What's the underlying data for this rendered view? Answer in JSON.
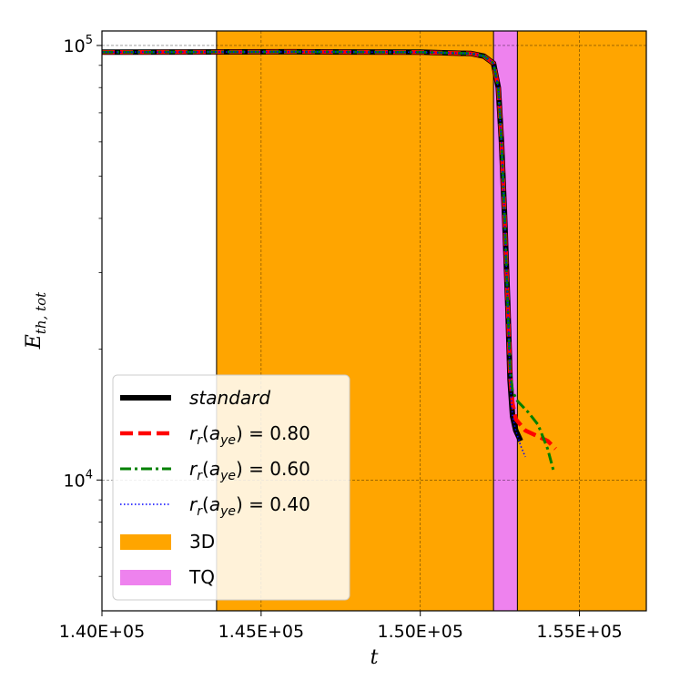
{
  "chart_data": {
    "type": "line",
    "xlabel": "t",
    "ylabel_main": "E",
    "ylabel_sub": "th, tot",
    "xlim": [
      140000,
      157100
    ],
    "ylim": [
      5000,
      108000
    ],
    "yscale": "log",
    "grid": true,
    "x_ticks": [
      {
        "value": 140000,
        "label": "1.40E+05"
      },
      {
        "value": 145000,
        "label": "1.45E+05"
      },
      {
        "value": 150000,
        "label": "1.50E+05"
      },
      {
        "value": 155000,
        "label": "1.55E+05"
      }
    ],
    "y_ticks": [
      {
        "value": 10000,
        "base": "10",
        "exp": "4"
      },
      {
        "value": 100000,
        "base": "10",
        "exp": "5"
      }
    ],
    "regions": [
      {
        "name": "3D",
        "x0": 143600,
        "x1": 157100,
        "color": "#ffa500"
      },
      {
        "name": "TQ",
        "x0": 152300,
        "x1": 153050,
        "color": "#ee82ee"
      }
    ],
    "series": [
      {
        "name": "standard",
        "color": "#000000",
        "style": "solid",
        "points": [
          [
            140000,
            96500
          ],
          [
            143000,
            96600
          ],
          [
            146000,
            96700
          ],
          [
            150000,
            96500
          ],
          [
            151600,
            95800
          ],
          [
            152000,
            94500
          ],
          [
            152300,
            91000
          ],
          [
            152450,
            80000
          ],
          [
            152550,
            60000
          ],
          [
            152650,
            40000
          ],
          [
            152750,
            25000
          ],
          [
            152820,
            17000
          ],
          [
            152900,
            14000
          ],
          [
            153000,
            13000
          ],
          [
            153150,
            12300
          ]
        ]
      },
      {
        "name": "r_r(a_ye) = 0.80",
        "color": "#ff0000",
        "style": "dashed",
        "points": [
          [
            140000,
            96500
          ],
          [
            143000,
            96600
          ],
          [
            146000,
            96700
          ],
          [
            150000,
            96500
          ],
          [
            151600,
            95800
          ],
          [
            152000,
            94500
          ],
          [
            152300,
            91000
          ],
          [
            152450,
            80000
          ],
          [
            152550,
            60000
          ],
          [
            152650,
            40000
          ],
          [
            152750,
            25000
          ],
          [
            152820,
            17500
          ],
          [
            152900,
            15000
          ],
          [
            153000,
            13800
          ],
          [
            153300,
            13000
          ],
          [
            153700,
            12600
          ],
          [
            154000,
            12300
          ],
          [
            154250,
            11800
          ]
        ]
      },
      {
        "name": "r_r(a_ye) = 0.60",
        "color": "#008000",
        "style": "dashdot",
        "points": [
          [
            140000,
            96500
          ],
          [
            143000,
            96600
          ],
          [
            146000,
            96700
          ],
          [
            150000,
            96500
          ],
          [
            151600,
            95800
          ],
          [
            152000,
            94500
          ],
          [
            152300,
            91000
          ],
          [
            152450,
            80000
          ],
          [
            152550,
            60000
          ],
          [
            152650,
            40000
          ],
          [
            152750,
            25000
          ],
          [
            152820,
            18000
          ],
          [
            152900,
            16000
          ],
          [
            153050,
            15200
          ],
          [
            153400,
            14300
          ],
          [
            153700,
            13400
          ],
          [
            154000,
            11800
          ],
          [
            154200,
            10400
          ]
        ]
      },
      {
        "name": "r_r(a_ye) = 0.40",
        "color": "#0000ff",
        "style": "dotted",
        "points": [
          [
            140000,
            96500
          ],
          [
            143000,
            96600
          ],
          [
            146000,
            96700
          ],
          [
            150000,
            96500
          ],
          [
            151600,
            95800
          ],
          [
            152000,
            94500
          ],
          [
            152300,
            91000
          ],
          [
            152450,
            80000
          ],
          [
            152550,
            60000
          ],
          [
            152650,
            40000
          ],
          [
            152750,
            25000
          ],
          [
            152820,
            17000
          ],
          [
            152900,
            14000
          ],
          [
            153000,
            13000
          ],
          [
            153150,
            12000
          ],
          [
            153300,
            11300
          ]
        ]
      }
    ],
    "legend": {
      "placement": "lower-left",
      "entries": [
        {
          "type": "line",
          "series": 0,
          "style": "solid",
          "color": "#000000",
          "text": "standard",
          "italic": true
        },
        {
          "type": "line",
          "series": 1,
          "style": "dashed",
          "color": "#ff0000",
          "r": "r",
          "sub1": "r",
          "open": "(a",
          "sub2": "ye",
          "close": ") = 0.80"
        },
        {
          "type": "line",
          "series": 2,
          "style": "dashdot",
          "color": "#008000",
          "r": "r",
          "sub1": "r",
          "open": "(a",
          "sub2": "ye",
          "close": ") = 0.60"
        },
        {
          "type": "line",
          "series": 3,
          "style": "dotted",
          "color": "#0000ff",
          "r": "r",
          "sub1": "r",
          "open": "(a",
          "sub2": "ye",
          "close": ") = 0.40"
        },
        {
          "type": "patch",
          "color": "#ffa500",
          "text": "3D"
        },
        {
          "type": "patch",
          "color": "#ee82ee",
          "text": "TQ"
        }
      ]
    }
  }
}
